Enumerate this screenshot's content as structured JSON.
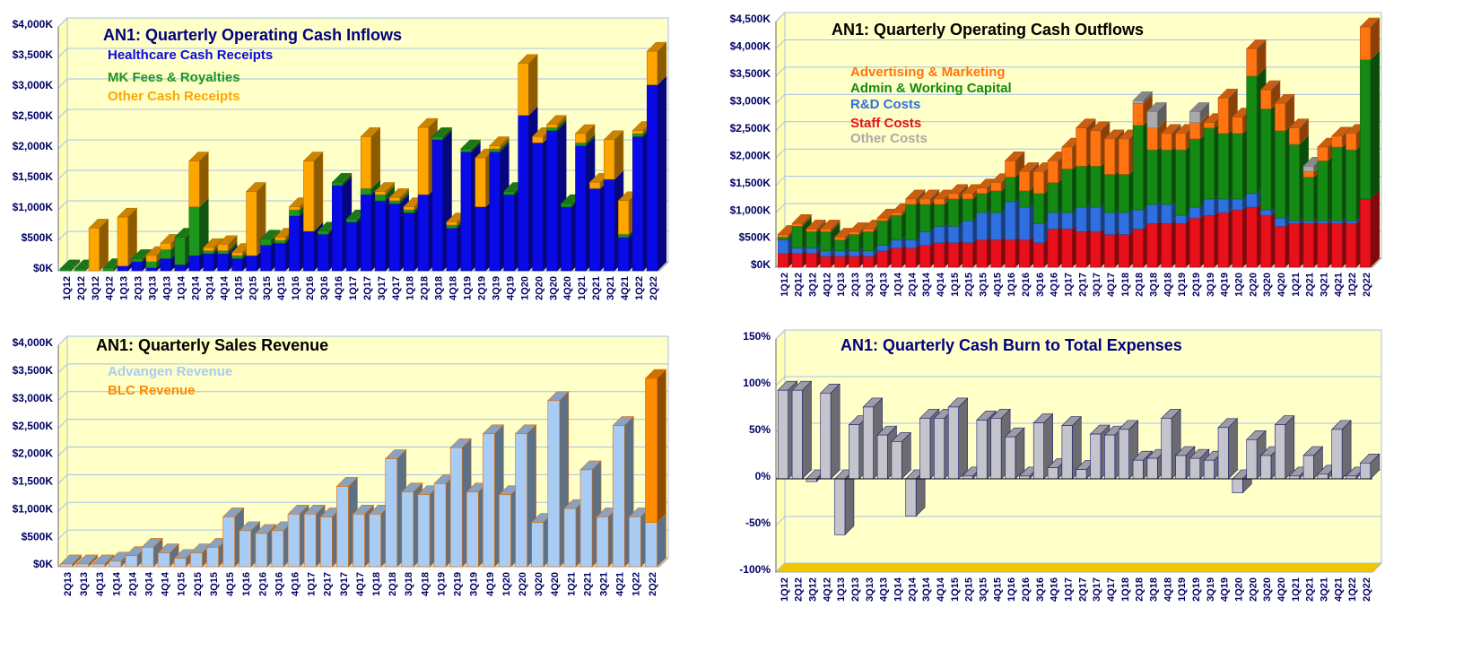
{
  "chart_data": [
    {
      "type": "bar",
      "stacked": true,
      "title": "AN1: Quarterly Operating Cash Inflows",
      "categories": [
        "1Q12",
        "2Q12",
        "3Q12",
        "4Q12",
        "1Q13",
        "2Q13",
        "3Q13",
        "4Q13",
        "1Q14",
        "2Q14",
        "3Q14",
        "4Q14",
        "1Q15",
        "2Q15",
        "3Q15",
        "4Q15",
        "1Q16",
        "2Q16",
        "3Q16",
        "4Q16",
        "1Q17",
        "2Q17",
        "3Q17",
        "4Q17",
        "1Q18",
        "2Q18",
        "3Q18",
        "4Q18",
        "1Q19",
        "2Q19",
        "3Q19",
        "4Q19",
        "1Q20",
        "2Q20",
        "3Q20",
        "4Q20",
        "1Q21",
        "2Q21",
        "3Q21",
        "4Q21",
        "1Q22",
        "2Q22"
      ],
      "series": [
        {
          "name": "Healthcare Cash Receipts",
          "color": "#0a0ae6",
          "values": [
            0,
            0,
            0,
            0,
            80,
            150,
            50,
            200,
            100,
            250,
            280,
            280,
            200,
            250,
            420,
            450,
            900,
            650,
            600,
            1400,
            800,
            1250,
            1150,
            1100,
            950,
            1250,
            2150,
            700,
            1950,
            1050,
            1950,
            1250,
            2550,
            2100,
            2300,
            1050,
            2050,
            1350,
            1500,
            550,
            2200,
            3050
          ]
        },
        {
          "name": "MK Fees & Royalties",
          "color": "#1e961e",
          "values": [
            30,
            30,
            0,
            50,
            0,
            50,
            100,
            150,
            450,
            800,
            50,
            50,
            50,
            0,
            100,
            50,
            100,
            0,
            50,
            50,
            50,
            100,
            100,
            50,
            50,
            0,
            50,
            50,
            50,
            0,
            50,
            50,
            0,
            0,
            50,
            50,
            50,
            0,
            0,
            50,
            50,
            0
          ]
        },
        {
          "name": "Other Cash Receipts",
          "color": "#ffa500",
          "values": [
            0,
            0,
            700,
            0,
            800,
            0,
            100,
            100,
            0,
            750,
            50,
            100,
            50,
            1050,
            0,
            50,
            50,
            1150,
            0,
            0,
            0,
            850,
            50,
            50,
            50,
            1100,
            0,
            50,
            0,
            800,
            50,
            0,
            850,
            100,
            50,
            0,
            150,
            100,
            650,
            550,
            50,
            550
          ]
        }
      ],
      "ylim": [
        0,
        4000
      ],
      "yticks": [
        {
          "value": 0,
          "label": "$0K"
        },
        {
          "value": 500,
          "label": "$500K"
        },
        {
          "value": 1000,
          "label": "$1,000K"
        },
        {
          "value": 1500,
          "label": "$1,500K"
        },
        {
          "value": 2000,
          "label": "$2,000K"
        },
        {
          "value": 2500,
          "label": "$2,500K"
        },
        {
          "value": 3000,
          "label": "$3,000K"
        },
        {
          "value": 3500,
          "label": "$3,500K"
        },
        {
          "value": 4000,
          "label": "$4,000K"
        }
      ],
      "grid": true
    },
    {
      "type": "bar",
      "stacked": true,
      "title": "AN1: Quarterly Operating Cash Outflows",
      "categories": [
        "1Q12",
        "2Q12",
        "3Q12",
        "4Q12",
        "1Q13",
        "2Q13",
        "3Q13",
        "4Q13",
        "1Q14",
        "2Q14",
        "3Q14",
        "4Q14",
        "1Q15",
        "2Q15",
        "3Q15",
        "4Q15",
        "1Q16",
        "2Q16",
        "3Q16",
        "4Q16",
        "1Q17",
        "2Q17",
        "3Q17",
        "4Q17",
        "1Q18",
        "2Q18",
        "3Q18",
        "4Q18",
        "1Q19",
        "2Q19",
        "3Q19",
        "4Q19",
        "1Q20",
        "2Q20",
        "3Q20",
        "4Q20",
        "1Q21",
        "2Q21",
        "3Q21",
        "4Q21",
        "1Q22",
        "2Q22"
      ],
      "series": [
        {
          "name": "Advertising & Marketing",
          "color": "#ff7410",
          "values": [
            50,
            50,
            50,
            50,
            50,
            50,
            50,
            50,
            50,
            100,
            100,
            100,
            100,
            100,
            100,
            150,
            300,
            350,
            400,
            400,
            400,
            700,
            650,
            650,
            650,
            400,
            400,
            300,
            300,
            300,
            100,
            650,
            300,
            500,
            350,
            500,
            300,
            100,
            250,
            200,
            300,
            600
          ]
        },
        {
          "name": "Admin & Working Capital",
          "color": "#148a14",
          "values": [
            50,
            400,
            300,
            350,
            200,
            300,
            350,
            450,
            450,
            650,
            500,
            400,
            500,
            400,
            350,
            400,
            450,
            300,
            550,
            550,
            800,
            750,
            750,
            700,
            700,
            1550,
            1000,
            1000,
            1200,
            1250,
            1300,
            1200,
            1200,
            2150,
            1850,
            1600,
            1400,
            800,
            1100,
            1350,
            1300,
            2550
          ]
        },
        {
          "name": "R&D Costs",
          "color": "#2f6fe0",
          "values": [
            250,
            100,
            100,
            100,
            100,
            100,
            100,
            100,
            150,
            150,
            250,
            300,
            300,
            400,
            500,
            500,
            700,
            600,
            350,
            300,
            300,
            450,
            450,
            400,
            400,
            350,
            350,
            350,
            150,
            200,
            300,
            250,
            200,
            250,
            100,
            150,
            50,
            50,
            50,
            50,
            50,
            0
          ]
        },
        {
          "name": "Staff Costs",
          "color": "#e8101a",
          "values": [
            250,
            250,
            250,
            200,
            200,
            200,
            200,
            300,
            350,
            350,
            400,
            450,
            450,
            450,
            500,
            500,
            500,
            500,
            450,
            700,
            700,
            650,
            650,
            600,
            600,
            700,
            800,
            800,
            800,
            900,
            950,
            1000,
            1050,
            1100,
            950,
            750,
            800,
            800,
            800,
            800,
            800,
            1250
          ]
        },
        {
          "name": "Other Costs",
          "color": "#aaaaaa",
          "values": [
            0,
            0,
            0,
            0,
            0,
            0,
            0,
            0,
            0,
            0,
            0,
            0,
            0,
            0,
            0,
            0,
            0,
            0,
            0,
            0,
            0,
            0,
            0,
            0,
            0,
            50,
            300,
            0,
            0,
            200,
            0,
            0,
            0,
            0,
            0,
            0,
            0,
            100,
            0,
            0,
            0,
            0
          ]
        }
      ],
      "ylim": [
        0,
        4500
      ],
      "yticks": [
        {
          "value": 0,
          "label": "$0K"
        },
        {
          "value": 500,
          "label": "$500K"
        },
        {
          "value": 1000,
          "label": "$1,000K"
        },
        {
          "value": 1500,
          "label": "$1,500K"
        },
        {
          "value": 2000,
          "label": "$2,000K"
        },
        {
          "value": 2500,
          "label": "$2,500K"
        },
        {
          "value": 3000,
          "label": "$3,000K"
        },
        {
          "value": 3500,
          "label": "$3,500K"
        },
        {
          "value": 4000,
          "label": "$4,000K"
        },
        {
          "value": 4500,
          "label": "$4,500K"
        }
      ],
      "grid": true
    },
    {
      "type": "bar",
      "stacked": true,
      "title": "AN1: Quarterly Sales Revenue",
      "categories": [
        "2Q13",
        "3Q13",
        "4Q13",
        "1Q14",
        "2Q14",
        "3Q14",
        "4Q14",
        "1Q15",
        "2Q15",
        "3Q15",
        "4Q15",
        "1Q16",
        "2Q16",
        "3Q16",
        "4Q16",
        "1Q17",
        "2Q17",
        "3Q17",
        "4Q17",
        "1Q18",
        "2Q18",
        "3Q18",
        "4Q18",
        "1Q19",
        "2Q19",
        "3Q19",
        "4Q19",
        "1Q20",
        "2Q20",
        "3Q20",
        "4Q20",
        "1Q21",
        "2Q21",
        "3Q21",
        "4Q21",
        "1Q22",
        "2Q22"
      ],
      "series": [
        {
          "name": "Advangen Revenue",
          "color": "#a8ccf4",
          "values": [
            50,
            50,
            50,
            100,
            200,
            350,
            250,
            150,
            250,
            350,
            900,
            650,
            600,
            650,
            950,
            950,
            900,
            1450,
            950,
            950,
            1950,
            1350,
            1300,
            1500,
            2150,
            1350,
            2400,
            1300,
            2400,
            800,
            3000,
            1050,
            1750,
            900,
            2550,
            900,
            800
          ]
        },
        {
          "name": "BLC Revenue",
          "color": "#ff8c00",
          "values": [
            0,
            0,
            0,
            0,
            0,
            0,
            0,
            0,
            0,
            0,
            0,
            0,
            0,
            0,
            0,
            0,
            0,
            0,
            0,
            0,
            0,
            0,
            0,
            0,
            0,
            0,
            0,
            0,
            0,
            0,
            0,
            0,
            0,
            0,
            0,
            0,
            2600
          ]
        }
      ],
      "ylim": [
        0,
        4000
      ],
      "yticks": [
        {
          "value": 0,
          "label": "$0K"
        },
        {
          "value": 500,
          "label": "$500K"
        },
        {
          "value": 1000,
          "label": "$1,000K"
        },
        {
          "value": 1500,
          "label": "$1,500K"
        },
        {
          "value": 2000,
          "label": "$2,000K"
        },
        {
          "value": 2500,
          "label": "$2,500K"
        },
        {
          "value": 3000,
          "label": "$3,000K"
        },
        {
          "value": 3500,
          "label": "$3,500K"
        },
        {
          "value": 4000,
          "label": "$4,000K"
        }
      ],
      "grid": true
    },
    {
      "type": "bar",
      "title": "AN1:  Quarterly Cash Burn to Total Expenses",
      "categories": [
        "1Q12",
        "2Q12",
        "3Q12",
        "4Q12",
        "1Q13",
        "2Q13",
        "3Q13",
        "4Q13",
        "1Q14",
        "2Q14",
        "3Q14",
        "4Q14",
        "1Q15",
        "2Q15",
        "3Q15",
        "4Q15",
        "1Q16",
        "2Q16",
        "3Q16",
        "4Q16",
        "1Q17",
        "2Q17",
        "3Q17",
        "4Q17",
        "1Q18",
        "2Q18",
        "3Q18",
        "4Q18",
        "1Q19",
        "2Q19",
        "3Q19",
        "4Q19",
        "1Q20",
        "2Q20",
        "3Q20",
        "4Q20",
        "1Q21",
        "2Q21",
        "3Q21",
        "4Q21",
        "1Q22",
        "2Q22"
      ],
      "values": [
        95,
        95,
        -3,
        92,
        -60,
        58,
        77,
        47,
        40,
        -40,
        65,
        65,
        77,
        3,
        63,
        65,
        45,
        3,
        60,
        12,
        57,
        10,
        48,
        47,
        53,
        20,
        22,
        65,
        25,
        22,
        20,
        55,
        -15,
        42,
        25,
        58,
        3,
        25,
        5,
        53,
        3,
        17
      ],
      "color": "#c4c4cc",
      "ylim": [
        -100,
        150
      ],
      "yticks": [
        {
          "value": -100,
          "label": "-100%"
        },
        {
          "value": -50,
          "label": "-50%"
        },
        {
          "value": 0,
          "label": "0%"
        },
        {
          "value": 50,
          "label": "50%"
        },
        {
          "value": 100,
          "label": "100%"
        },
        {
          "value": 150,
          "label": "150%"
        }
      ],
      "grid": true
    }
  ]
}
